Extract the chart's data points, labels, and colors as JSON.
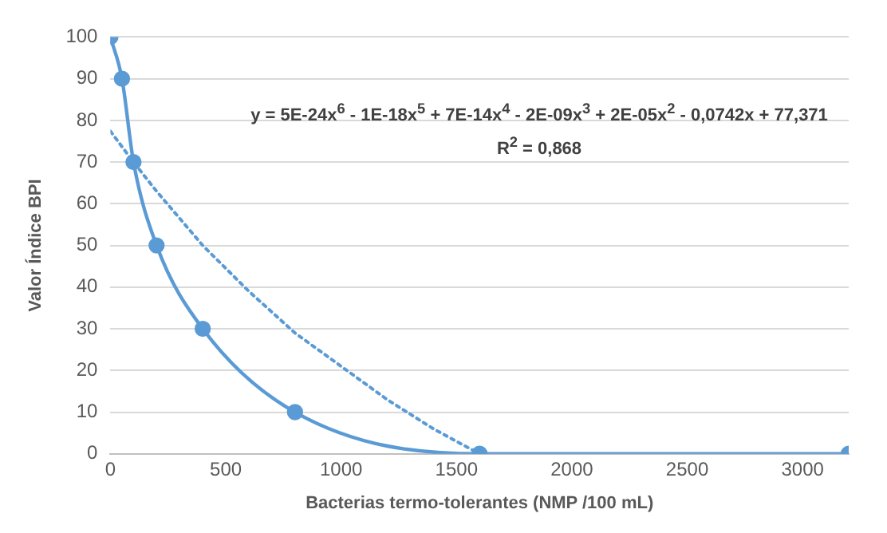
{
  "chart_data": {
    "type": "line",
    "xlabel": "Bacterias termo-tolerantes (NMP /100 mL)",
    "ylabel": "Valor Índice BPI",
    "xlim": [
      0,
      3200
    ],
    "xticks": [
      0,
      500,
      1000,
      1500,
      2000,
      2500,
      3000
    ],
    "ylim": [
      0,
      100
    ],
    "yticks": [
      0,
      10,
      20,
      30,
      40,
      50,
      60,
      70,
      80,
      90,
      100
    ],
    "grid": "y",
    "legend": false,
    "marker": "circle",
    "line_style": "solid",
    "series": [
      {
        "color": "#5b9bd5",
        "x": [
          0,
          50,
          100,
          200,
          400,
          800,
          1600,
          3200
        ],
        "values": [
          100,
          90,
          70,
          50,
          30,
          10,
          0,
          0
        ]
      },
      {
        "type": "line",
        "color": "#5b9bd5",
        "marker": "none",
        "line_style": "dotted",
        "x": [
          0,
          100,
          200,
          400,
          600,
          800,
          1000,
          1200,
          1400,
          1600
        ],
        "values": [
          77.4,
          70,
          63,
          50,
          39,
          29,
          21,
          13,
          6,
          0
        ]
      }
    ],
    "annotations": [
      "y = 5E-24x$^{6}$ - 1E-18x$^{5}$ + 7E-14x$^{4}$ - 2E-09x$^{3}$ + 2E-05x$^{2}$ - 0,0742x + 77,371",
      "R$^{2}$ = 0,868"
    ]
  }
}
